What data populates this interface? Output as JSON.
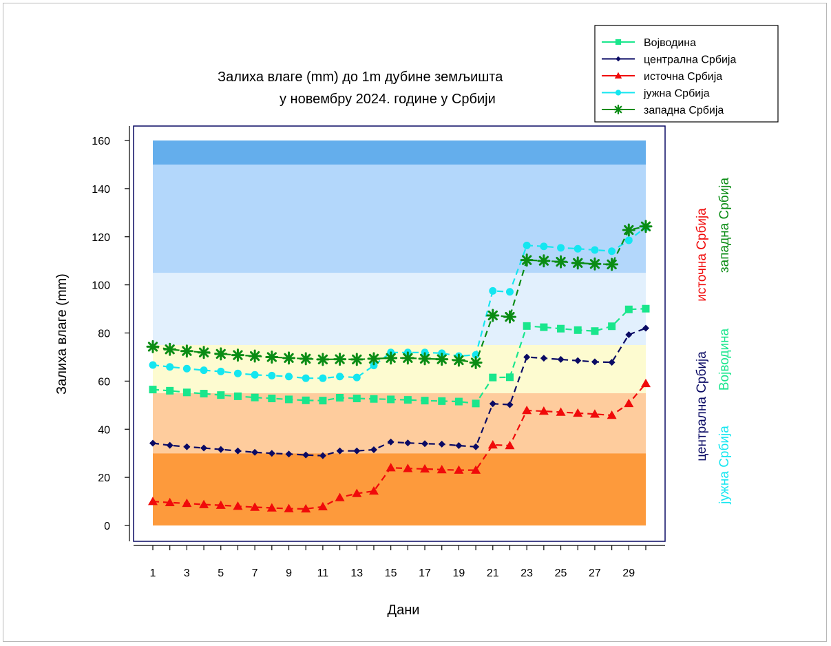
{
  "chart_data": {
    "type": "line",
    "title_lines": [
      "Залиха влаге (mm) до 1m дубине земљишта",
      "у новембру 2024. године у Србији"
    ],
    "xlabel": "Дани",
    "ylabel": "Залиха влаге (mm)",
    "xlim": [
      1,
      30
    ],
    "ylim": [
      0,
      160
    ],
    "x_ticks": [
      "1",
      "3",
      "5",
      "7",
      "9",
      "11",
      "13",
      "15",
      "17",
      "19",
      "21",
      "23",
      "25",
      "27",
      "29"
    ],
    "y_ticks": [
      "0",
      "20",
      "40",
      "60",
      "80",
      "100",
      "120",
      "140",
      "160"
    ],
    "grid": false,
    "legend_position": "top-right",
    "bands": [
      {
        "from": 0,
        "to": 30,
        "color": "#fd9a3c"
      },
      {
        "from": 30,
        "to": 55,
        "color": "#fecc9d"
      },
      {
        "from": 55,
        "to": 75,
        "color": "#fdfbd0"
      },
      {
        "from": 75,
        "to": 105,
        "color": "#e2f0fd"
      },
      {
        "from": 105,
        "to": 150,
        "color": "#b3d7fb"
      },
      {
        "from": 150,
        "to": 160,
        "color": "#64aeec"
      }
    ],
    "series": [
      {
        "name": "Војводина",
        "color": "#19e68c",
        "marker": "square",
        "values": [
          56.5,
          56,
          55.3,
          54.8,
          54.2,
          53.7,
          53.2,
          52.8,
          52.4,
          52,
          51.9,
          53.1,
          52.8,
          52.6,
          52.4,
          52.2,
          51.9,
          51.7,
          51.5,
          50.7,
          61.5,
          61.6,
          82.9,
          82.4,
          81.8,
          81.2,
          80.8,
          82.8,
          89.8,
          90.1
        ]
      },
      {
        "name": "централна Србија",
        "color": "#0a0a64",
        "marker": "diamond",
        "values": [
          34.2,
          33.3,
          32.7,
          32.2,
          31.6,
          31,
          30.4,
          30,
          29.7,
          29.3,
          29,
          31,
          31,
          31.5,
          34.7,
          34.3,
          34,
          33.8,
          33.2,
          32.7,
          50.6,
          50.2,
          70,
          69.5,
          69,
          68.5,
          68,
          67.8,
          79.3,
          82
        ]
      },
      {
        "name": "источна Србија",
        "color": "#f00a0a",
        "marker": "triangle",
        "values": [
          10,
          9.5,
          9.2,
          8.7,
          8.4,
          8,
          7.6,
          7.3,
          7,
          6.9,
          7.8,
          11.6,
          13.3,
          14.3,
          24,
          23.7,
          23.5,
          23.2,
          23,
          23,
          33.5,
          33.2,
          47.8,
          47.5,
          47.1,
          46.7,
          46.3,
          45.8,
          50.7,
          59
        ]
      },
      {
        "name": "јужна Србија",
        "color": "#14e6f0",
        "marker": "circle",
        "values": [
          66.7,
          65.9,
          65.2,
          64.5,
          64,
          63.2,
          62.6,
          62.3,
          61.9,
          61.2,
          61.2,
          61.9,
          61.5,
          66.5,
          71.9,
          71.9,
          71.9,
          71.6,
          70.4,
          70.9,
          97.5,
          97.1,
          116.4,
          116,
          115.4,
          115,
          114.5,
          114,
          118.5,
          124
        ]
      },
      {
        "name": "западна Србија",
        "color": "#0a8c14",
        "marker": "asterisk",
        "values": [
          74.3,
          73.2,
          72.5,
          71.9,
          71.3,
          70.8,
          70.4,
          70,
          69.6,
          69.3,
          69,
          69.1,
          69,
          69.3,
          69.6,
          69.6,
          69.3,
          69.1,
          68.7,
          67.7,
          87.3,
          86.7,
          110.3,
          110,
          109.6,
          109.1,
          108.7,
          108.5,
          122.8,
          124.3
        ]
      }
    ],
    "side_labels": [
      {
        "text": "источна Србија",
        "color": "#f00a0a"
      },
      {
        "text": "западна Србија",
        "color": "#0a8c14"
      },
      {
        "text": "централна Србија",
        "color": "#0a0a64"
      },
      {
        "text": "Војводина",
        "color": "#19e68c"
      },
      {
        "text": "јужна Србија",
        "color": "#14e6f0"
      }
    ]
  }
}
